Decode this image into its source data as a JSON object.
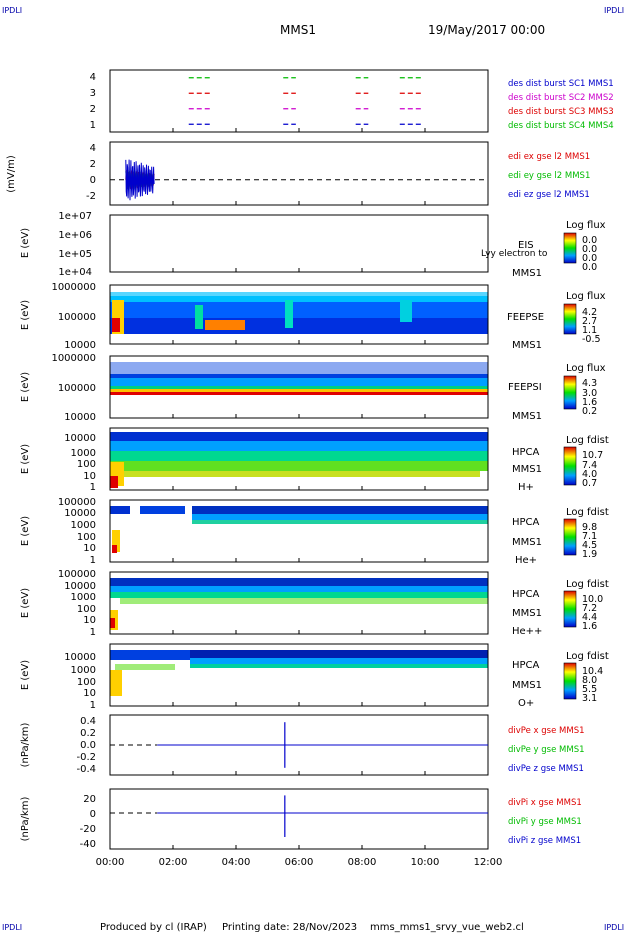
{
  "header": {
    "corner_left": "IPDLI",
    "corner_right": "IPDLI",
    "mission": "MMS1",
    "date": "19/May/2017 00:00"
  },
  "footer": {
    "produced_by": "Produced by cl (IRAP)",
    "printing_date": "Printing date: 28/Nov/2023",
    "template": "mms_mms1_srvy_vue_web2.cl",
    "corner_left": "IPDLI",
    "corner_right": "IPDLI"
  },
  "colors": {
    "blue": "#0000cc",
    "red": "#dd0000",
    "green": "#00bb00",
    "magenta": "#cc00cc"
  },
  "time_axis": {
    "ticks": [
      "00:00",
      "02:00",
      "04:00",
      "06:00",
      "08:00",
      "10:00",
      "12:00"
    ],
    "range_hours": [
      0,
      12
    ]
  },
  "chart_data": [
    {
      "type": "line",
      "id": "burst",
      "yticks": [
        "4",
        "3",
        "2",
        "1"
      ],
      "ylim": [
        0.5,
        4.5
      ],
      "ylabel": "",
      "legend": [
        {
          "name": "des dist burst SC1 MMS1",
          "color": "#0000cc"
        },
        {
          "name": "des dist burst SC2 MMS2",
          "color": "#dd0000"
        },
        {
          "name": "des dist burst SC3 MMS3",
          "color": "#cc00cc"
        },
        {
          "name": "des dist burst SC4 MMS4",
          "color": "#00bb00"
        }
      ],
      "intervals_hours": [
        [
          2.5,
          3.2
        ],
        [
          5.5,
          5.9
        ],
        [
          7.8,
          8.2
        ],
        [
          9.2,
          9.9
        ]
      ]
    },
    {
      "type": "line",
      "id": "efield",
      "ylabel": "(mV/m)",
      "yticks": [
        "4",
        "2",
        "0",
        "-2"
      ],
      "ylim": [
        -3,
        4.5
      ],
      "legend": [
        {
          "name": "edi ex gse l2 MMS1",
          "color": "#dd0000"
        },
        {
          "name": "edi ey gse l2 MMS1",
          "color": "#00bb00"
        },
        {
          "name": "edi ez gse l2 MMS1",
          "color": "#0000cc"
        }
      ],
      "active_range_hours": [
        0.5,
        1.4
      ],
      "zero_line": "dashed"
    },
    {
      "type": "heatmap",
      "id": "eis",
      "ylabel": "E (eV)",
      "yticks": [
        "1e+07",
        "1e+06",
        "1e+05",
        "1e+04"
      ],
      "labels": [
        "EIS",
        "MMS1"
      ],
      "overlay_text": "Lyy electron to",
      "colorbar_title": "Log flux",
      "colorbar_ticks": [
        "0.0",
        "0.0",
        "0.0",
        "0.0"
      ]
    },
    {
      "type": "heatmap",
      "id": "feepse",
      "ylabel": "E (eV)",
      "yticks": [
        "1000000",
        "100000",
        "10000"
      ],
      "labels": [
        "FEEPSE",
        "MMS1"
      ],
      "colorbar_title": "Log flux",
      "colorbar_ticks": [
        "4.2",
        "2.7",
        "1.1",
        "-0.5"
      ]
    },
    {
      "type": "heatmap",
      "id": "feepsi",
      "ylabel": "E (eV)",
      "yticks": [
        "1000000",
        "100000",
        "10000"
      ],
      "labels": [
        "FEEPSI",
        "MMS1"
      ],
      "colorbar_title": "Log flux",
      "colorbar_ticks": [
        "4.3",
        "3.0",
        "1.6",
        "0.2"
      ]
    },
    {
      "type": "heatmap",
      "id": "hpca_h",
      "ylabel": "E (eV)",
      "yticks": [
        "10000",
        "1000",
        "100",
        "10",
        "1"
      ],
      "labels": [
        "HPCA",
        "MMS1",
        "H+"
      ],
      "colorbar_title": "Log fdist",
      "colorbar_ticks": [
        "10.7",
        "7.4",
        "4.0",
        "0.7"
      ]
    },
    {
      "type": "heatmap",
      "id": "hpca_he",
      "ylabel": "E (eV)",
      "yticks": [
        "100000",
        "10000",
        "1000",
        "100",
        "10",
        "1"
      ],
      "labels": [
        "HPCA",
        "MMS1",
        "He+"
      ],
      "colorbar_title": "Log fdist",
      "colorbar_ticks": [
        "9.8",
        "7.1",
        "4.5",
        "1.9"
      ]
    },
    {
      "type": "heatmap",
      "id": "hpca_hepp",
      "ylabel": "E (eV)",
      "yticks": [
        "100000",
        "10000",
        "1000",
        "100",
        "10",
        "1"
      ],
      "labels": [
        "HPCA",
        "MMS1",
        "He++"
      ],
      "colorbar_title": "Log fdist",
      "colorbar_ticks": [
        "10.0",
        "7.2",
        "4.4",
        "1.6"
      ]
    },
    {
      "type": "heatmap",
      "id": "hpca_o",
      "ylabel": "E (eV)",
      "yticks": [
        "10000",
        "1000",
        "100",
        "10",
        "1"
      ],
      "labels": [
        "HPCA",
        "MMS1",
        "O+"
      ],
      "colorbar_title": "Log fdist",
      "colorbar_ticks": [
        "10.4",
        "8.0",
        "5.5",
        "3.1"
      ]
    },
    {
      "type": "line",
      "id": "divpe",
      "ylabel": "(nPa/km)",
      "yticks": [
        "0.4",
        "0.2",
        "0.0",
        "-0.2",
        "-0.4"
      ],
      "ylim": [
        -0.5,
        0.5
      ],
      "legend": [
        {
          "name": "divPe x gse MMS1",
          "color": "#dd0000"
        },
        {
          "name": "divPe y gse MMS1",
          "color": "#00bb00"
        },
        {
          "name": "divPe z gse MMS1",
          "color": "#0000cc"
        }
      ],
      "spike": {
        "time_hours": 5.55,
        "max": 0.38,
        "min": -0.38
      }
    },
    {
      "type": "line",
      "id": "divpi",
      "ylabel": "(nPa/km)",
      "yticks": [
        "20",
        "0",
        "-20",
        "-40"
      ],
      "ylim": [
        -45,
        30
      ],
      "legend": [
        {
          "name": "divPi x gse MMS1",
          "color": "#dd0000"
        },
        {
          "name": "divPi y gse MMS1",
          "color": "#00bb00"
        },
        {
          "name": "divPi z gse MMS1",
          "color": "#0000cc"
        }
      ],
      "spike": {
        "time_hours": 5.55,
        "max": 22,
        "min": -30
      }
    }
  ]
}
